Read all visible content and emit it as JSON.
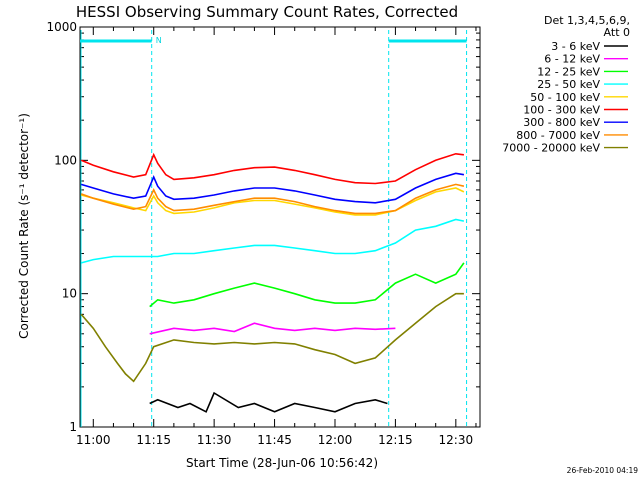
{
  "chart_data": {
    "type": "line",
    "title": "HESSI Observing Summary Count Rates, Corrected",
    "xlabel": "Start Time (28-Jun-06 10:56:42)",
    "ylabel": "Corrected Count Rate (s⁻¹ detector⁻¹)",
    "y_scale": "log",
    "ylim": [
      1,
      1000
    ],
    "xlim": [
      "10:56:42",
      "12:36:00"
    ],
    "x_ticks": [
      "11:00",
      "11:15",
      "11:30",
      "11:45",
      "12:00",
      "12:15",
      "12:30"
    ],
    "y_ticks": [
      "1",
      "10",
      "100",
      "1000"
    ],
    "legend_title": [
      "Det 1,3,4,5,6,9,",
      "Att 0"
    ],
    "legend_placement": "right",
    "flag_label": "N",
    "timestamp": "26-Feb-2010 04:19",
    "night_intervals": [
      [
        "10:56:42",
        "11:14:30"
      ],
      [
        "12:13:20",
        "12:32:40"
      ]
    ],
    "series": [
      {
        "name": "3 - 6 keV",
        "color": "#000000",
        "points": [
          [
            "11:14",
            "1.5"
          ],
          [
            "11:16",
            "1.6"
          ],
          [
            "11:21",
            "1.4"
          ],
          [
            "11:24",
            "1.5"
          ],
          [
            "11:28",
            "1.3"
          ],
          [
            "11:30",
            "1.8"
          ],
          [
            "11:36",
            "1.4"
          ],
          [
            "11:40",
            "1.5"
          ],
          [
            "11:45",
            "1.3"
          ],
          [
            "11:50",
            "1.5"
          ],
          [
            "11:55",
            "1.4"
          ],
          [
            "12:00",
            "1.3"
          ],
          [
            "12:05",
            "1.5"
          ],
          [
            "12:10",
            "1.6"
          ],
          [
            "12:13",
            "1.5"
          ]
        ]
      },
      {
        "name": "6 - 12 keV",
        "color": "#ff00ff",
        "points": [
          [
            "11:14",
            "5"
          ],
          [
            "11:20",
            "5.5"
          ],
          [
            "11:25",
            "5.3"
          ],
          [
            "11:30",
            "5.5"
          ],
          [
            "11:35",
            "5.2"
          ],
          [
            "11:40",
            "6"
          ],
          [
            "11:45",
            "5.5"
          ],
          [
            "11:50",
            "5.3"
          ],
          [
            "11:55",
            "5.5"
          ],
          [
            "12:00",
            "5.3"
          ],
          [
            "12:05",
            "5.5"
          ],
          [
            "12:10",
            "5.4"
          ],
          [
            "12:15",
            "5.5"
          ]
        ]
      },
      {
        "name": "12 - 25 keV",
        "color": "#00ff00",
        "points": [
          [
            "11:14",
            "8"
          ],
          [
            "11:16",
            "9"
          ],
          [
            "11:20",
            "8.5"
          ],
          [
            "11:25",
            "9"
          ],
          [
            "11:30",
            "10"
          ],
          [
            "11:35",
            "11"
          ],
          [
            "11:40",
            "12"
          ],
          [
            "11:45",
            "11"
          ],
          [
            "11:50",
            "10"
          ],
          [
            "11:55",
            "9"
          ],
          [
            "12:00",
            "8.5"
          ],
          [
            "12:05",
            "8.5"
          ],
          [
            "12:10",
            "9"
          ],
          [
            "12:15",
            "12"
          ],
          [
            "12:20",
            "14"
          ],
          [
            "12:25",
            "12"
          ],
          [
            "12:30",
            "14"
          ],
          [
            "12:32",
            "17"
          ]
        ]
      },
      {
        "name": "25 - 50 keV",
        "color": "#00ffff",
        "points": [
          [
            "10:57",
            "17"
          ],
          [
            "11:00",
            "18"
          ],
          [
            "11:05",
            "19"
          ],
          [
            "11:10",
            "19"
          ],
          [
            "11:14",
            "19"
          ],
          [
            "11:16",
            "19"
          ],
          [
            "11:20",
            "20"
          ],
          [
            "11:25",
            "20"
          ],
          [
            "11:30",
            "21"
          ],
          [
            "11:35",
            "22"
          ],
          [
            "11:40",
            "23"
          ],
          [
            "11:45",
            "23"
          ],
          [
            "11:50",
            "22"
          ],
          [
            "11:55",
            "21"
          ],
          [
            "12:00",
            "20"
          ],
          [
            "12:05",
            "20"
          ],
          [
            "12:10",
            "21"
          ],
          [
            "12:15",
            "24"
          ],
          [
            "12:20",
            "30"
          ],
          [
            "12:25",
            "32"
          ],
          [
            "12:30",
            "36"
          ],
          [
            "12:32",
            "35"
          ]
        ]
      },
      {
        "name": "50 - 100 keV",
        "color": "#ffd700",
        "points": [
          [
            "10:57",
            "55"
          ],
          [
            "11:00",
            "52"
          ],
          [
            "11:05",
            "48"
          ],
          [
            "11:10",
            "44"
          ],
          [
            "11:13",
            "42"
          ],
          [
            "11:15",
            "54"
          ],
          [
            "11:16",
            "48"
          ],
          [
            "11:18",
            "42"
          ],
          [
            "11:20",
            "40"
          ],
          [
            "11:25",
            "41"
          ],
          [
            "11:30",
            "44"
          ],
          [
            "11:35",
            "48"
          ],
          [
            "11:40",
            "50"
          ],
          [
            "11:45",
            "50"
          ],
          [
            "11:50",
            "47"
          ],
          [
            "11:55",
            "44"
          ],
          [
            "12:00",
            "41"
          ],
          [
            "12:05",
            "39"
          ],
          [
            "12:10",
            "39"
          ],
          [
            "12:15",
            "42"
          ],
          [
            "12:20",
            "50"
          ],
          [
            "12:25",
            "58"
          ],
          [
            "12:30",
            "62"
          ],
          [
            "12:32",
            "58"
          ]
        ]
      },
      {
        "name": "100 - 300 keV",
        "color": "#ff0000",
        "points": [
          [
            "10:57",
            "100"
          ],
          [
            "11:00",
            "92"
          ],
          [
            "11:05",
            "82"
          ],
          [
            "11:10",
            "75"
          ],
          [
            "11:13",
            "78"
          ],
          [
            "11:15",
            "110"
          ],
          [
            "11:16",
            "95"
          ],
          [
            "11:18",
            "78"
          ],
          [
            "11:20",
            "72"
          ],
          [
            "11:25",
            "74"
          ],
          [
            "11:30",
            "78"
          ],
          [
            "11:35",
            "84"
          ],
          [
            "11:40",
            "88"
          ],
          [
            "11:45",
            "89"
          ],
          [
            "11:50",
            "84"
          ],
          [
            "11:55",
            "78"
          ],
          [
            "12:00",
            "72"
          ],
          [
            "12:05",
            "68"
          ],
          [
            "12:10",
            "67"
          ],
          [
            "12:15",
            "70"
          ],
          [
            "12:20",
            "85"
          ],
          [
            "12:25",
            "100"
          ],
          [
            "12:30",
            "112"
          ],
          [
            "12:32",
            "110"
          ]
        ]
      },
      {
        "name": "300 - 800 keV",
        "color": "#0000ff",
        "points": [
          [
            "10:57",
            "66"
          ],
          [
            "11:00",
            "62"
          ],
          [
            "11:05",
            "56"
          ],
          [
            "11:10",
            "52"
          ],
          [
            "11:13",
            "54"
          ],
          [
            "11:15",
            "75"
          ],
          [
            "11:16",
            "64"
          ],
          [
            "11:18",
            "54"
          ],
          [
            "11:20",
            "51"
          ],
          [
            "11:25",
            "52"
          ],
          [
            "11:30",
            "55"
          ],
          [
            "11:35",
            "59"
          ],
          [
            "11:40",
            "62"
          ],
          [
            "11:45",
            "62"
          ],
          [
            "11:50",
            "59"
          ],
          [
            "11:55",
            "55"
          ],
          [
            "12:00",
            "51"
          ],
          [
            "12:05",
            "49"
          ],
          [
            "12:10",
            "48"
          ],
          [
            "12:15",
            "51"
          ],
          [
            "12:20",
            "62"
          ],
          [
            "12:25",
            "72"
          ],
          [
            "12:30",
            "80"
          ],
          [
            "12:32",
            "78"
          ]
        ]
      },
      {
        "name": "800 - 7000 keV",
        "color": "#ff8c00",
        "points": [
          [
            "10:57",
            "56"
          ],
          [
            "11:00",
            "52"
          ],
          [
            "11:05",
            "47"
          ],
          [
            "11:10",
            "43"
          ],
          [
            "11:13",
            "45"
          ],
          [
            "11:15",
            "60"
          ],
          [
            "11:16",
            "52"
          ],
          [
            "11:18",
            "45"
          ],
          [
            "11:20",
            "42"
          ],
          [
            "11:25",
            "43"
          ],
          [
            "11:30",
            "46"
          ],
          [
            "11:35",
            "49"
          ],
          [
            "11:40",
            "52"
          ],
          [
            "11:45",
            "52"
          ],
          [
            "11:50",
            "49"
          ],
          [
            "11:55",
            "45"
          ],
          [
            "12:00",
            "42"
          ],
          [
            "12:05",
            "40"
          ],
          [
            "12:10",
            "40"
          ],
          [
            "12:15",
            "42"
          ],
          [
            "12:20",
            "52"
          ],
          [
            "12:25",
            "60"
          ],
          [
            "12:30",
            "66"
          ],
          [
            "12:32",
            "64"
          ]
        ]
      },
      {
        "name": "7000 - 20000 keV",
        "color": "#808000",
        "points": [
          [
            "10:57",
            "7"
          ],
          [
            "11:00",
            "5.5"
          ],
          [
            "11:03",
            "4"
          ],
          [
            "11:06",
            "3"
          ],
          [
            "11:08",
            "2.5"
          ],
          [
            "11:10",
            "2.2"
          ],
          [
            "11:13",
            "3"
          ],
          [
            "11:15",
            "4"
          ],
          [
            "11:20",
            "4.5"
          ],
          [
            "11:25",
            "4.3"
          ],
          [
            "11:30",
            "4.2"
          ],
          [
            "11:35",
            "4.3"
          ],
          [
            "11:40",
            "4.2"
          ],
          [
            "11:45",
            "4.3"
          ],
          [
            "11:50",
            "4.2"
          ],
          [
            "11:55",
            "3.8"
          ],
          [
            "12:00",
            "3.5"
          ],
          [
            "12:05",
            "3"
          ],
          [
            "12:10",
            "3.3"
          ],
          [
            "12:15",
            "4.5"
          ],
          [
            "12:20",
            "6"
          ],
          [
            "12:25",
            "8"
          ],
          [
            "12:30",
            "10"
          ],
          [
            "12:32",
            "10"
          ]
        ]
      }
    ]
  }
}
